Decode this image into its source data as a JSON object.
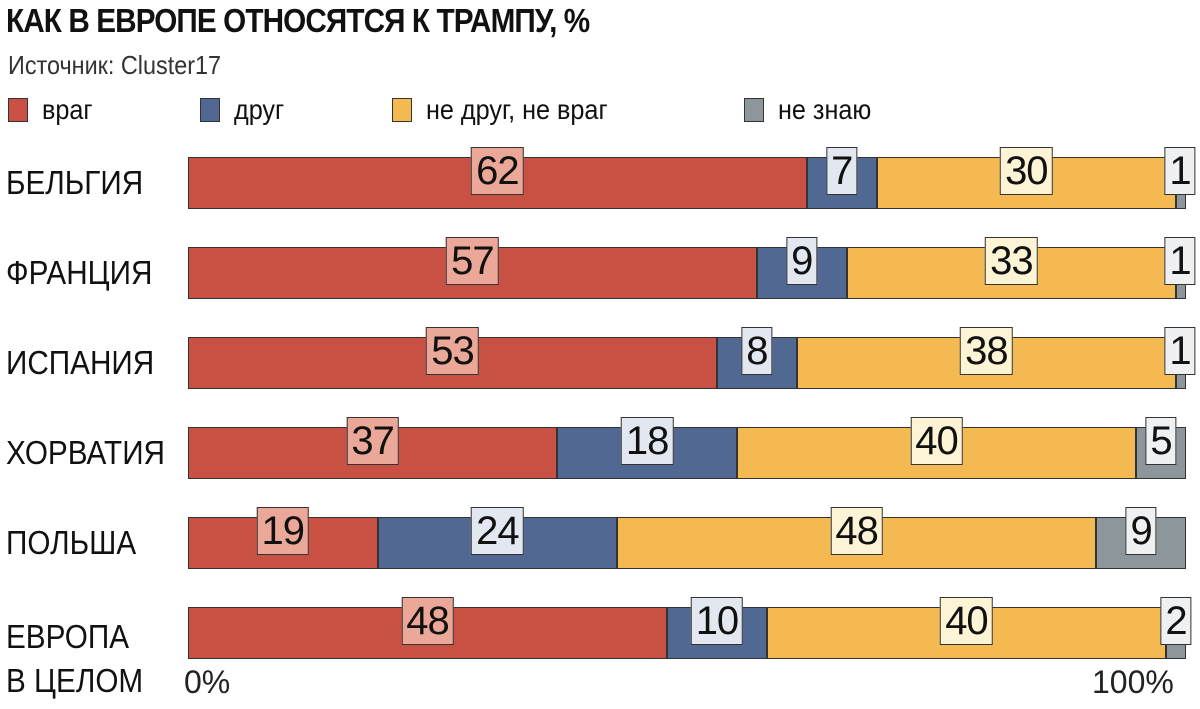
{
  "title": "КАК В ЕВРОПЕ ОТНОСЯТСЯ К ТРАМПУ, %",
  "source": "Источник: Cluster17",
  "chart_data": {
    "type": "bar",
    "orientation": "horizontal",
    "stacked": true,
    "title": "КАК В ЕВРОПЕ ОТНОСЯТСЯ К ТРАМПУ, %",
    "categories": [
      "БЕЛЬГИЯ",
      "ФРАНЦИЯ",
      "ИСПАНИЯ",
      "ХОРВАТИЯ",
      "ПОЛЬША",
      "ЕВРОПА В ЦЕЛОМ"
    ],
    "category_lines": [
      [
        "БЕЛЬГИЯ"
      ],
      [
        "ФРАНЦИЯ"
      ],
      [
        "ИСПАНИЯ"
      ],
      [
        "ХОРВАТИЯ"
      ],
      [
        "ПОЛЬША"
      ],
      [
        "ЕВРОПА",
        "В ЦЕЛОМ"
      ]
    ],
    "series": [
      {
        "name": "враг",
        "color": "#c85144",
        "label_bg": "#eba797",
        "values": [
          62,
          57,
          53,
          37,
          19,
          48
        ]
      },
      {
        "name": "друг",
        "color": "#516892",
        "label_bg": "#e3e8f0",
        "values": [
          7,
          9,
          8,
          18,
          24,
          10
        ]
      },
      {
        "name": "не друг, не враг",
        "color": "#f5b952",
        "label_bg": "#fdf3d5",
        "values": [
          30,
          33,
          38,
          40,
          48,
          40
        ]
      },
      {
        "name": "не знаю",
        "color": "#8c969b",
        "label_bg": "#eef0f2",
        "values": [
          1,
          1,
          1,
          5,
          9,
          2
        ]
      }
    ],
    "xlim": [
      0,
      100
    ],
    "tick_labels": [
      "0%",
      "100%"
    ],
    "legend_position": "top",
    "grid": false
  }
}
